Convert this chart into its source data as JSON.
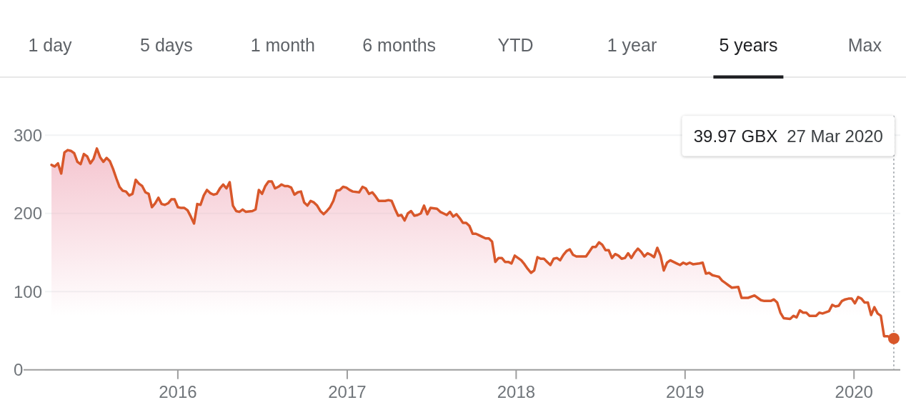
{
  "chart_data": {
    "type": "area",
    "x": [
      "2015-04-03",
      "2015-04-10",
      "2015-04-17",
      "2015-04-24",
      "2015-05-01",
      "2015-05-08",
      "2015-05-15",
      "2015-05-22",
      "2015-05-29",
      "2015-06-05",
      "2015-06-12",
      "2015-06-19",
      "2015-06-26",
      "2015-07-03",
      "2015-07-10",
      "2015-07-17",
      "2015-07-24",
      "2015-07-31",
      "2015-08-07",
      "2015-08-14",
      "2015-08-21",
      "2015-08-28",
      "2015-09-04",
      "2015-09-11",
      "2015-09-18",
      "2015-09-25",
      "2015-10-02",
      "2015-10-09",
      "2015-10-16",
      "2015-10-23",
      "2015-10-30",
      "2015-11-06",
      "2015-11-13",
      "2015-11-20",
      "2015-11-27",
      "2015-12-04",
      "2015-12-11",
      "2015-12-18",
      "2015-12-25",
      "2016-01-01",
      "2016-01-08",
      "2016-01-15",
      "2016-01-22",
      "2016-01-29",
      "2016-02-05",
      "2016-02-12",
      "2016-02-19",
      "2016-02-26",
      "2016-03-04",
      "2016-03-11",
      "2016-03-18",
      "2016-03-25",
      "2016-04-01",
      "2016-04-08",
      "2016-04-15",
      "2016-04-22",
      "2016-04-29",
      "2016-05-06",
      "2016-05-13",
      "2016-05-20",
      "2016-05-27",
      "2016-06-10",
      "2016-06-17",
      "2016-06-24",
      "2016-07-01",
      "2016-07-08",
      "2016-07-15",
      "2016-07-22",
      "2016-07-29",
      "2016-08-05",
      "2016-08-12",
      "2016-08-19",
      "2016-08-26",
      "2016-09-02",
      "2016-09-09",
      "2016-09-16",
      "2016-09-23",
      "2016-09-30",
      "2016-10-07",
      "2016-10-14",
      "2016-10-21",
      "2016-10-28",
      "2016-11-04",
      "2016-11-11",
      "2016-11-18",
      "2016-11-25",
      "2016-12-02",
      "2016-12-09",
      "2016-12-16",
      "2016-12-23",
      "2016-12-30",
      "2017-01-06",
      "2017-01-13",
      "2017-01-27",
      "2017-02-03",
      "2017-02-10",
      "2017-02-17",
      "2017-02-24",
      "2017-03-03",
      "2017-03-10",
      "2017-03-24",
      "2017-03-31",
      "2017-04-07",
      "2017-04-14",
      "2017-04-21",
      "2017-04-28",
      "2017-05-05",
      "2017-05-12",
      "2017-05-19",
      "2017-05-26",
      "2017-06-02",
      "2017-06-09",
      "2017-06-16",
      "2017-06-23",
      "2017-06-30",
      "2017-07-14",
      "2017-07-21",
      "2017-07-28",
      "2017-08-04",
      "2017-08-11",
      "2017-08-18",
      "2017-08-25",
      "2017-09-01",
      "2017-09-08",
      "2017-09-15",
      "2017-09-22",
      "2017-09-29",
      "2017-10-06",
      "2017-10-13",
      "2017-10-20",
      "2017-10-27",
      "2017-11-03",
      "2017-11-10",
      "2017-11-17",
      "2017-11-24",
      "2017-12-01",
      "2017-12-08",
      "2017-12-15",
      "2017-12-22",
      "2017-12-29",
      "2018-01-05",
      "2018-01-12",
      "2018-01-19",
      "2018-01-26",
      "2018-02-02",
      "2018-02-09",
      "2018-02-16",
      "2018-02-23",
      "2018-03-02",
      "2018-03-09",
      "2018-03-16",
      "2018-03-23",
      "2018-03-30",
      "2018-04-06",
      "2018-04-13",
      "2018-04-20",
      "2018-04-27",
      "2018-05-04",
      "2018-05-11",
      "2018-05-18",
      "2018-05-25",
      "2018-06-01",
      "2018-06-08",
      "2018-06-15",
      "2018-06-22",
      "2018-06-29",
      "2018-07-06",
      "2018-07-13",
      "2018-07-20",
      "2018-07-27",
      "2018-08-03",
      "2018-08-10",
      "2018-08-17",
      "2018-08-24",
      "2018-08-31",
      "2018-09-07",
      "2018-09-14",
      "2018-09-21",
      "2018-09-28",
      "2018-10-05",
      "2018-10-12",
      "2018-10-19",
      "2018-10-26",
      "2018-11-02",
      "2018-11-09",
      "2018-11-16",
      "2018-11-23",
      "2018-11-30",
      "2018-12-07",
      "2018-12-14",
      "2018-12-21",
      "2018-12-28",
      "2019-01-04",
      "2019-01-11",
      "2019-01-18",
      "2019-02-01",
      "2019-02-08",
      "2019-02-15",
      "2019-02-22",
      "2019-03-01",
      "2019-03-08",
      "2019-03-15",
      "2019-03-22",
      "2019-03-29",
      "2019-04-05",
      "2019-04-12",
      "2019-04-26",
      "2019-05-03",
      "2019-05-10",
      "2019-05-17",
      "2019-05-31",
      "2019-06-07",
      "2019-06-14",
      "2019-06-21",
      "2019-07-05",
      "2019-07-12",
      "2019-07-19",
      "2019-07-26",
      "2019-08-02",
      "2019-08-16",
      "2019-08-23",
      "2019-08-30",
      "2019-09-06",
      "2019-09-13",
      "2019-09-20",
      "2019-09-27",
      "2019-10-11",
      "2019-10-18",
      "2019-10-25",
      "2019-11-08",
      "2019-11-15",
      "2019-11-22",
      "2019-11-29",
      "2019-12-06",
      "2019-12-13",
      "2019-12-20",
      "2019-12-27",
      "2020-01-03",
      "2020-01-10",
      "2020-01-17",
      "2020-01-24",
      "2020-01-31",
      "2020-02-07",
      "2020-02-14",
      "2020-02-21",
      "2020-02-28",
      "2020-03-06",
      "2020-03-13",
      "2020-03-27"
    ],
    "series": [
      {
        "color": "#d8572a",
        "values": [
          262,
          260,
          264,
          251,
          278,
          281,
          280,
          277,
          266,
          263,
          276,
          273,
          264,
          270,
          283,
          272,
          266,
          271,
          267,
          257,
          245,
          234,
          229,
          228,
          223,
          225,
          243,
          238,
          235,
          227,
          225,
          208,
          213,
          220,
          212,
          211,
          213,
          218,
          218,
          208,
          207,
          207,
          204,
          196,
          187,
          212,
          211,
          223,
          230,
          226,
          224,
          225,
          232,
          237,
          232,
          240,
          210,
          203,
          202,
          205,
          202,
          203,
          205,
          230,
          225,
          235,
          241,
          241,
          232,
          234,
          237,
          235,
          235,
          233,
          224,
          227,
          228,
          214,
          210,
          216,
          214,
          210,
          203,
          199,
          203,
          208,
          216,
          229,
          230,
          234,
          233,
          230,
          228,
          227,
          234,
          232,
          225,
          227,
          222,
          216,
          216,
          217,
          216,
          206,
          197,
          198,
          191,
          200,
          203,
          197,
          198,
          200,
          210,
          199,
          207,
          206,
          202,
          200,
          198,
          202,
          196,
          199,
          194,
          188,
          188,
          184,
          174,
          174,
          172,
          170,
          168,
          168,
          164,
          138,
          143,
          143,
          138,
          138,
          136,
          146,
          143,
          140,
          135,
          129,
          124,
          127,
          144,
          142,
          142,
          138,
          134,
          142,
          143,
          140,
          147,
          152,
          154,
          147,
          145,
          145,
          145,
          145,
          151,
          157,
          157,
          163,
          160,
          153,
          153,
          143,
          148,
          146,
          142,
          143,
          149,
          143,
          150,
          155,
          151,
          145,
          149,
          147,
          144,
          156,
          146,
          127,
          137,
          140,
          138,
          136,
          134,
          137,
          135,
          137,
          135,
          136,
          137,
          123,
          124,
          121,
          120,
          119,
          114,
          111,
          108,
          105,
          106,
          92,
          92,
          92,
          95,
          92,
          89,
          88,
          88,
          90,
          86,
          73,
          66,
          65,
          69,
          67,
          76,
          73,
          73,
          69,
          69,
          73,
          72,
          75,
          83,
          81,
          82,
          88,
          90,
          91,
          91,
          85,
          93,
          91,
          86,
          86,
          70,
          80,
          72,
          69,
          43,
          43,
          39.97
        ]
      },
      {
        "type": "scatter",
        "x": [
          "2020-03-27"
        ],
        "values": [
          39.97
        ],
        "color": "#d8572a",
        "marker": "circle"
      }
    ],
    "xlim": [
      "2015-03-20",
      "2020-04-10"
    ],
    "xticks": [
      "2016",
      "2017",
      "2018",
      "2019",
      "2020"
    ],
    "ylim": [
      0,
      300
    ],
    "yticks": [
      0,
      100,
      200,
      300
    ],
    "grid": "y",
    "ref_lines": [
      {
        "axis": "x",
        "value": "2020-03-27",
        "line_style": "dotted",
        "color": "#9aa0a6",
        "label": "39.97 GBX  27 Mar 2020"
      }
    ],
    "annotations": [
      "1 day",
      "5 days",
      "1 month",
      "6 months",
      "YTD",
      "1 year",
      "5 years",
      "Max"
    ]
  }
}
